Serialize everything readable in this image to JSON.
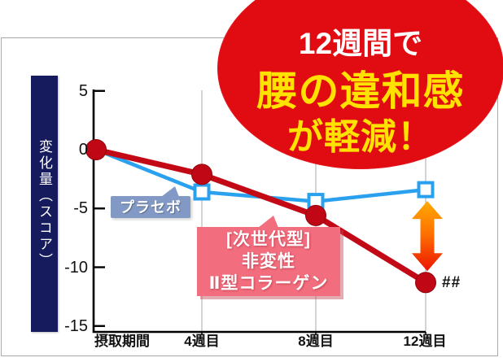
{
  "badge": {
    "line1": "12週間で",
    "line2": "腰の違和感",
    "line3": "が軽減！",
    "bg_color": "#e10c12",
    "line1_color": "#ffffff",
    "accent_color": "#ffe200"
  },
  "chart_data": {
    "type": "line",
    "title": "",
    "ylabel": "変化量（スコア）",
    "xlabel": "",
    "categories": [
      "摂取期間",
      "4週目",
      "8週目",
      "12週目"
    ],
    "yticks": [
      5,
      0,
      -5,
      -10,
      -15
    ],
    "ylim": [
      -15,
      5
    ],
    "grid": "vertical-only",
    "legend_position": "inline-callouts",
    "series": [
      {
        "name": "プラセボ",
        "values": [
          0,
          -3.6,
          -4.4,
          -3.4
        ],
        "color": "#2aa1ef",
        "marker": "open-square"
      },
      {
        "name": "[次世代型]非変性Ⅱ型コラーゲン",
        "values": [
          0,
          -2.1,
          -5.6,
          -11.3
        ],
        "color": "#c30916",
        "marker": "filled-circle"
      }
    ],
    "annotations": {
      "significance": "##",
      "difference_arrow": "placebo-vs-collagen-at-12週目"
    }
  },
  "callouts": {
    "placebo": {
      "label": "プラセボ",
      "bg_color": "#8299c5"
    },
    "collagen": {
      "line1": "[次世代型]",
      "line2": "非変性",
      "line3": "Ⅱ型コラーゲン",
      "bg_color": "#f26e7e"
    }
  },
  "arrow": {
    "top_color": "#ffaa00",
    "mid_color": "#ff7300",
    "bottom_color": "#ec1400"
  },
  "axis_colors": {
    "navy_box": "#151b5c",
    "axis": "#000000",
    "gridline": "#bcbcbc"
  }
}
